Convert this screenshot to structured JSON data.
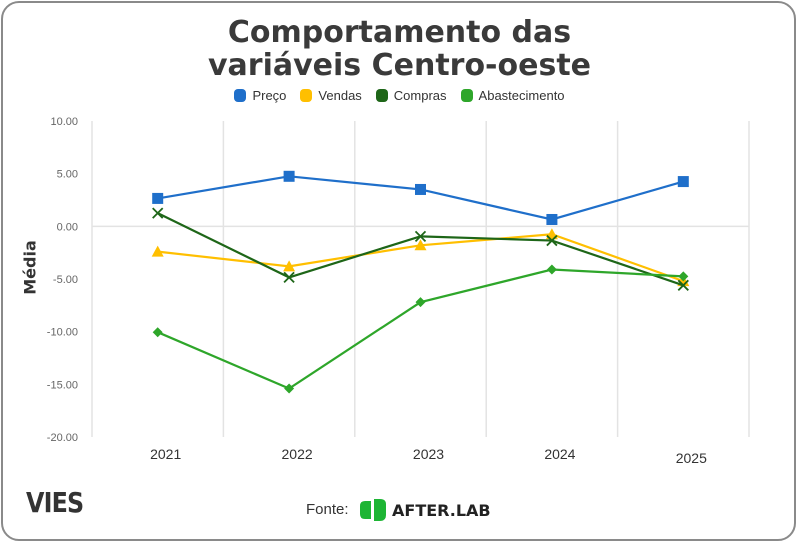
{
  "header": {
    "title_line1": "Comportamento das",
    "title_line2": "variáveis Centro-oeste"
  },
  "footer": {
    "brand": "VIES",
    "source_label": "Fonte:",
    "source_name": "AFTER.LAB",
    "source_logo_color": "#1db534"
  },
  "chart_data": {
    "type": "line",
    "title": "Comportamento das variáveis Centro-oeste",
    "xlabel": "",
    "ylabel": "Média",
    "x": [
      "2021",
      "2022",
      "2023",
      "2024",
      "2025"
    ],
    "ylim": [
      -20,
      10
    ],
    "yticks": [
      10,
      5,
      0,
      -5,
      -10,
      -15,
      -20
    ],
    "ytick_labels": [
      "10.00",
      "5.00",
      "0.00",
      "-5.00",
      "-10.00",
      "-15.00",
      "-20.00"
    ],
    "grid": true,
    "legend_position": "top-center",
    "series": [
      {
        "name": "Preço",
        "color": "#1f6fca",
        "marker": "square",
        "values": [
          2.65,
          4.75,
          3.5,
          0.65,
          4.25
        ]
      },
      {
        "name": "Vendas",
        "color": "#ffbf00",
        "marker": "triangle",
        "values": [
          -2.4,
          -3.8,
          -1.8,
          -0.75,
          -5.2
        ]
      },
      {
        "name": "Compras",
        "color": "#1e6618",
        "marker": "x",
        "values": [
          1.25,
          -4.85,
          -0.95,
          -1.35,
          -5.6
        ]
      },
      {
        "name": "Abastecimento",
        "color": "#2ea62a",
        "marker": "diamond",
        "values": [
          -10.05,
          -15.4,
          -7.2,
          -4.1,
          -4.75
        ]
      }
    ]
  }
}
